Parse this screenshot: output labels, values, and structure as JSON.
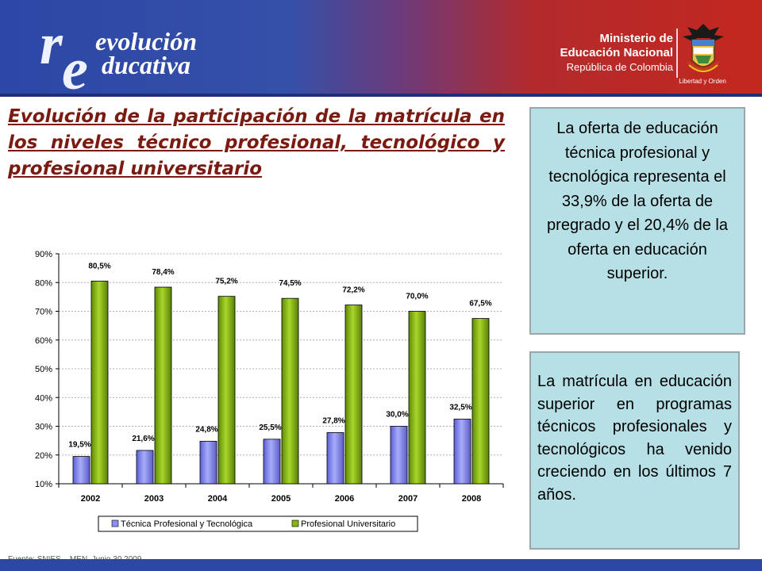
{
  "header": {
    "logo_line1": "evolución",
    "logo_line2": "ducativa",
    "logo_initial_r": "r",
    "logo_initial_e": "e",
    "ministry_line1": "Ministerio de",
    "ministry_line2": "Educación Nacional",
    "ministry_line3": "República de Colombia",
    "motto": "Libertad y Orden"
  },
  "title": "Evolución de la participación de la matrícula en los niveles técnico profesional, tecnológico y profesional universitario",
  "info_box_1": "La oferta de educación técnica profesional y tecnológica representa el 33,9% de la oferta de pregrado y el 20,4% de la oferta en educación superior.",
  "info_box_2": "La matrícula en educación superior en programas técnicos profesionales y tecnológicos ha venido creciendo en los últimos 7 años.",
  "source_note": "Fuente: SNIES – MEN, Junio 30 2009",
  "colors": {
    "series_blue": "#8c8ff0",
    "series_green": "#88b512",
    "title_red": "#7a1a10",
    "box_bg": "#b7e0e6"
  },
  "chart_data": {
    "type": "bar",
    "categories": [
      "2002",
      "2003",
      "2004",
      "2005",
      "2006",
      "2007",
      "2008"
    ],
    "series": [
      {
        "name": "Técnica Profesional y Tecnológica",
        "values": [
          19.5,
          21.6,
          24.8,
          25.5,
          27.8,
          30.0,
          32.5
        ],
        "labels": [
          "19,5%",
          "21,6%",
          "24,8%",
          "25,5%",
          "27,8%",
          "30,0%",
          "32,5%"
        ]
      },
      {
        "name": "Profesional Universitario",
        "values": [
          80.5,
          78.4,
          75.2,
          74.5,
          72.2,
          70.0,
          67.5
        ],
        "labels": [
          "80,5%",
          "78,4%",
          "75,2%",
          "74,5%",
          "72,2%",
          "70,0%",
          "67,5%"
        ]
      }
    ],
    "yticks": [
      "10%",
      "20%",
      "30%",
      "40%",
      "50%",
      "60%",
      "70%",
      "80%",
      "90%"
    ],
    "ylim": [
      10,
      90
    ],
    "grid": true,
    "legend": "bottom"
  }
}
